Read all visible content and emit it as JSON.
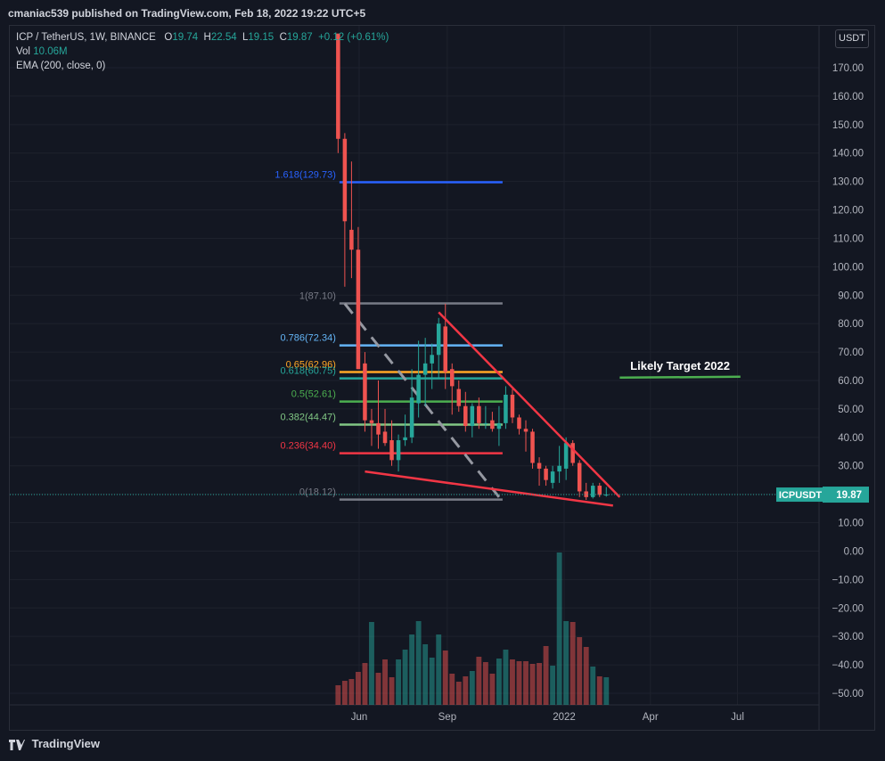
{
  "header": {
    "published": "cmaniac539 published on TradingView.com, Feb 18, 2022 19:22 UTC+5"
  },
  "legend": {
    "symbol": "ICP / TetherUS, 1W, BINANCE",
    "o_label": "O",
    "o": "19.74",
    "h_label": "H",
    "h": "22.54",
    "l_label": "L",
    "l": "19.15",
    "c_label": "C",
    "c": "19.87",
    "change": "+0.12 (+0.61%)",
    "vol_label": "Vol",
    "vol": "10.06M",
    "ema": "EMA (200, close, 0)"
  },
  "currency_button": "USDT",
  "footer": {
    "brand": "TradingView"
  },
  "colors": {
    "up": "#26a69a",
    "down": "#ef5350",
    "background": "#131722",
    "grid": "#1e222d",
    "text": "#b2b5be"
  },
  "chart_data": {
    "type": "candlestick",
    "title": "ICP / TetherUS, 1W, BINANCE",
    "y_ticks": [
      "170.00",
      "160.00",
      "150.00",
      "140.00",
      "130.00",
      "120.00",
      "110.00",
      "100.00",
      "90.00",
      "80.00",
      "70.00",
      "60.00",
      "50.00",
      "40.00",
      "30.00",
      "20.00",
      "10.00",
      "0.00",
      "−10.00",
      "−20.00",
      "−30.00",
      "−40.00",
      "−50.00"
    ],
    "y_tick_values": [
      170,
      160,
      150,
      140,
      130,
      120,
      110,
      100,
      90,
      80,
      70,
      60,
      50,
      40,
      30,
      20,
      10,
      0,
      -10,
      -20,
      -30,
      -40,
      -50
    ],
    "ylim": [
      -54,
      182
    ],
    "x_ticks": [
      {
        "label": "Jun",
        "date": "2021-06-01"
      },
      {
        "label": "Sep",
        "date": "2021-09-01"
      },
      {
        "label": "2022",
        "date": "2022-01-01"
      },
      {
        "label": "Apr",
        "date": "2022-04-01"
      },
      {
        "label": "Jul",
        "date": "2022-07-01"
      }
    ],
    "xlim": [
      "2021-04-26",
      "2022-09-12"
    ],
    "current_price_label": "ICPUSDT",
    "current_price": "19.87",
    "current_price_value": 19.87,
    "candles": [
      {
        "date": "2021-05-10",
        "open": 182,
        "high": 182,
        "low": 140,
        "close": 145
      },
      {
        "date": "2021-05-17",
        "open": 145,
        "high": 147,
        "low": 93,
        "close": 116
      },
      {
        "date": "2021-05-24",
        "open": 113,
        "high": 137,
        "low": 96,
        "close": 106
      },
      {
        "date": "2021-05-31",
        "open": 106,
        "high": 114,
        "low": 64,
        "close": 64
      },
      {
        "date": "2021-06-07",
        "open": 66,
        "high": 70,
        "low": 42,
        "close": 46
      },
      {
        "date": "2021-06-14",
        "open": 46,
        "high": 50,
        "low": 37,
        "close": 45
      },
      {
        "date": "2021-06-21",
        "open": 45,
        "high": 60,
        "low": 36,
        "close": 41
      },
      {
        "date": "2021-06-28",
        "open": 42,
        "high": 50,
        "low": 37,
        "close": 38
      },
      {
        "date": "2021-07-05",
        "open": 39,
        "high": 46,
        "low": 30,
        "close": 32
      },
      {
        "date": "2021-07-12",
        "open": 32,
        "high": 41,
        "low": 28,
        "close": 39
      },
      {
        "date": "2021-07-19",
        "open": 39,
        "high": 48,
        "low": 37,
        "close": 40
      },
      {
        "date": "2021-07-26",
        "open": 40,
        "high": 64,
        "low": 38,
        "close": 54
      },
      {
        "date": "2021-08-02",
        "open": 52,
        "high": 74,
        "low": 47,
        "close": 62
      },
      {
        "date": "2021-08-09",
        "open": 62,
        "high": 75,
        "low": 51,
        "close": 66
      },
      {
        "date": "2021-08-16",
        "open": 66,
        "high": 73,
        "low": 57,
        "close": 69
      },
      {
        "date": "2021-08-23",
        "open": 69,
        "high": 82,
        "low": 61,
        "close": 80
      },
      {
        "date": "2021-08-30",
        "open": 79,
        "high": 87,
        "low": 57,
        "close": 63
      },
      {
        "date": "2021-09-06",
        "open": 64,
        "high": 66,
        "low": 48,
        "close": 58
      },
      {
        "date": "2021-09-13",
        "open": 57,
        "high": 60,
        "low": 49,
        "close": 51
      },
      {
        "date": "2021-09-20",
        "open": 51,
        "high": 56,
        "low": 42,
        "close": 44
      },
      {
        "date": "2021-09-27",
        "open": 44,
        "high": 52,
        "low": 40,
        "close": 51
      },
      {
        "date": "2021-10-04",
        "open": 51,
        "high": 54,
        "low": 43,
        "close": 45
      },
      {
        "date": "2021-10-11",
        "open": 45,
        "high": 51,
        "low": 43,
        "close": 45
      },
      {
        "date": "2021-10-18",
        "open": 46,
        "high": 49,
        "low": 42,
        "close": 43
      },
      {
        "date": "2021-10-25",
        "open": 43,
        "high": 51,
        "low": 37,
        "close": 45
      },
      {
        "date": "2021-11-01",
        "open": 45,
        "high": 58,
        "low": 43,
        "close": 55
      },
      {
        "date": "2021-11-08",
        "open": 55,
        "high": 57,
        "low": 45,
        "close": 47
      },
      {
        "date": "2021-11-15",
        "open": 47,
        "high": 48,
        "low": 41,
        "close": 43
      },
      {
        "date": "2021-11-22",
        "open": 43,
        "high": 46,
        "low": 35,
        "close": 42
      },
      {
        "date": "2021-11-29",
        "open": 42,
        "high": 43,
        "low": 29,
        "close": 31
      },
      {
        "date": "2021-12-06",
        "open": 31,
        "high": 33,
        "low": 23,
        "close": 29
      },
      {
        "date": "2021-12-13",
        "open": 29,
        "high": 30,
        "low": 23,
        "close": 25
      },
      {
        "date": "2021-12-20",
        "open": 24,
        "high": 30,
        "low": 22,
        "close": 28
      },
      {
        "date": "2021-12-27",
        "open": 28,
        "high": 37,
        "low": 24,
        "close": 30
      },
      {
        "date": "2022-01-03",
        "open": 29,
        "high": 40,
        "low": 25,
        "close": 38
      },
      {
        "date": "2022-01-10",
        "open": 38,
        "high": 39,
        "low": 30,
        "close": 31
      },
      {
        "date": "2022-01-17",
        "open": 31,
        "high": 32,
        "low": 19,
        "close": 21
      },
      {
        "date": "2022-01-24",
        "open": 21,
        "high": 24,
        "low": 18,
        "close": 19
      },
      {
        "date": "2022-01-31",
        "open": 19,
        "high": 24,
        "low": 18.5,
        "close": 23
      },
      {
        "date": "2022-02-07",
        "open": 23,
        "high": 24,
        "low": 19,
        "close": 19.74
      },
      {
        "date": "2022-02-14",
        "open": 19.74,
        "high": 22.54,
        "low": 19.15,
        "close": 19.87
      }
    ],
    "volume_relative": [
      0.22,
      0.27,
      0.29,
      0.37,
      0.47,
      0.93,
      0.36,
      0.51,
      0.31,
      0.51,
      0.62,
      0.79,
      0.94,
      0.68,
      0.53,
      0.79,
      0.61,
      0.35,
      0.26,
      0.32,
      0.38,
      0.54,
      0.48,
      0.35,
      0.52,
      0.62,
      0.51,
      0.49,
      0.49,
      0.46,
      0.47,
      0.66,
      0.44,
      1.71,
      0.94,
      0.93,
      0.76,
      0.65,
      0.43,
      0.32,
      0.31
    ],
    "volume_up": [
      false,
      false,
      false,
      false,
      false,
      true,
      false,
      false,
      false,
      true,
      true,
      true,
      true,
      true,
      true,
      true,
      false,
      false,
      false,
      false,
      true,
      false,
      false,
      false,
      true,
      true,
      false,
      false,
      false,
      false,
      false,
      false,
      true,
      true,
      true,
      false,
      false,
      false,
      true,
      false,
      true
    ],
    "fib_levels": [
      {
        "ratio_label": "1.618(129.73)",
        "value": 129.73,
        "color": "#2962ff"
      },
      {
        "ratio_label": "1(87.10)",
        "value": 87.1,
        "color": "#787b86"
      },
      {
        "ratio_label": "0.786(72.34)",
        "value": 72.34,
        "color": "#64b5f6"
      },
      {
        "ratio_label": "0.65(62.96)",
        "value": 62.96,
        "color": "#ffa726"
      },
      {
        "ratio_label": "0.618(60.75)",
        "value": 60.75,
        "color": "#26a69a"
      },
      {
        "ratio_label": "0.5(52.61)",
        "value": 52.61,
        "color": "#4caf50"
      },
      {
        "ratio_label": "0.382(44.47)",
        "value": 44.47,
        "color": "#81c784"
      },
      {
        "ratio_label": "0.236(34.40)",
        "value": 34.4,
        "color": "#f23645"
      },
      {
        "ratio_label": "0(18.12)",
        "value": 18.12,
        "color": "#787b86"
      }
    ],
    "annotation": {
      "text": "Likely Target 2022",
      "level": 61.0,
      "from_date": "2022-02-28",
      "to_date": "2022-07-04"
    },
    "wedge_upper": [
      {
        "date": "2021-08-23",
        "value": 84
      },
      {
        "date": "2022-02-28",
        "value": 19
      }
    ],
    "wedge_lower": [
      {
        "date": "2021-06-07",
        "value": 28
      },
      {
        "date": "2022-02-21",
        "value": 16
      }
    ],
    "dashed_line": [
      {
        "date": "2021-05-17",
        "value": 87
      },
      {
        "date": "2021-10-25",
        "value": 19
      }
    ]
  }
}
